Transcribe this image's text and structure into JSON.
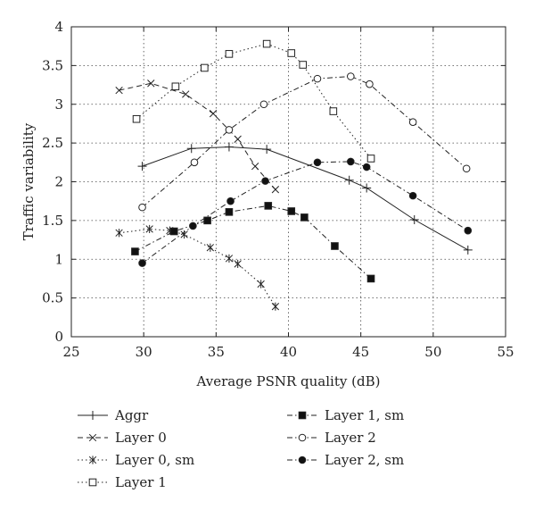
{
  "chart_data": {
    "type": "line",
    "title": "",
    "xlabel": "Average PSNR quality (dB)",
    "ylabel": "Traffic variability",
    "xlim": [
      25,
      55
    ],
    "ylim": [
      0,
      4
    ],
    "xticks": [
      25,
      30,
      35,
      40,
      45,
      50,
      55
    ],
    "yticks": [
      0,
      0.5,
      1,
      1.5,
      2,
      2.5,
      3,
      3.5,
      4
    ],
    "xtick_labels": [
      "25",
      "30",
      "35",
      "40",
      "45",
      "50",
      "55"
    ],
    "ytick_labels": [
      "0",
      "0.5",
      "1",
      "1.5",
      "2",
      "2.5",
      "3",
      "3.5",
      "4"
    ],
    "grid": true,
    "legend_position": "below",
    "series": [
      {
        "name": "Aggr",
        "line": "solid",
        "marker": "plus",
        "x": [
          29.9,
          33.3,
          35.9,
          38.5,
          44.2,
          45.4,
          48.7,
          52.4
        ],
        "y": [
          2.2,
          2.43,
          2.45,
          2.42,
          2.02,
          1.92,
          1.51,
          1.12
        ]
      },
      {
        "name": "Layer 0",
        "line": "dash",
        "marker": "x",
        "x": [
          28.3,
          30.5,
          32.9,
          34.8,
          36.5,
          37.7,
          39.1
        ],
        "y": [
          3.18,
          3.27,
          3.13,
          2.88,
          2.55,
          2.2,
          1.9
        ]
      },
      {
        "name": "Layer 0, sm",
        "line": "dot",
        "marker": "asterisk",
        "x": [
          28.3,
          30.4,
          31.8,
          32.8,
          34.6,
          35.9,
          36.5,
          38.1,
          39.1
        ],
        "y": [
          1.34,
          1.39,
          1.37,
          1.32,
          1.15,
          1.01,
          0.94,
          0.68,
          0.39
        ]
      },
      {
        "name": "Layer 1",
        "line": "dot",
        "marker": "square",
        "x": [
          29.5,
          32.2,
          34.2,
          35.9,
          38.5,
          40.2,
          41.0,
          43.1,
          45.7
        ],
        "y": [
          2.81,
          3.23,
          3.47,
          3.65,
          3.78,
          3.66,
          3.51,
          2.91,
          2.3
        ]
      },
      {
        "name": "Layer 1, sm",
        "line": "dashdot",
        "marker": "filled-square",
        "x": [
          29.4,
          32.1,
          34.4,
          35.9,
          38.6,
          40.2,
          41.1,
          43.2,
          45.7
        ],
        "y": [
          1.1,
          1.36,
          1.5,
          1.61,
          1.69,
          1.62,
          1.54,
          1.17,
          0.75
        ]
      },
      {
        "name": "Layer 2",
        "line": "dashdot",
        "marker": "circle",
        "x": [
          29.9,
          33.5,
          35.9,
          38.3,
          42.0,
          44.3,
          45.6,
          48.6,
          52.3
        ],
        "y": [
          1.67,
          2.25,
          2.67,
          3.0,
          3.33,
          3.36,
          3.26,
          2.77,
          2.17
        ]
      },
      {
        "name": "Layer 2, sm",
        "line": "dashdot",
        "marker": "filled-circle",
        "x": [
          29.9,
          33.4,
          36.0,
          38.4,
          42.0,
          44.3,
          45.4,
          48.6,
          52.4
        ],
        "y": [
          0.95,
          1.43,
          1.75,
          2.01,
          2.25,
          2.26,
          2.19,
          1.82,
          1.37
        ]
      }
    ]
  }
}
